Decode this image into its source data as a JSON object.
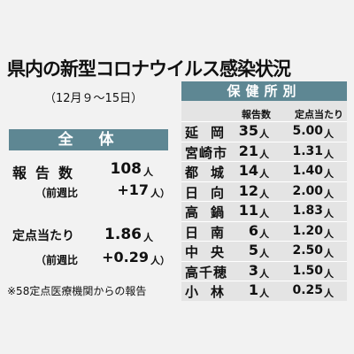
{
  "title": "県内の新型コロナウイルス感染状況",
  "period": "（12月９〜15日）",
  "overall": {
    "header": "全　体",
    "rows": [
      {
        "label": "報告数",
        "value": "108",
        "unit": "人"
      },
      {
        "label": "（前週比",
        "value": "+17",
        "unit": "人）"
      },
      {
        "label": "定点当たり",
        "value": "1.86",
        "unit": "人"
      },
      {
        "label": "（前週比",
        "value": "+0.29",
        "unit": "人）"
      }
    ]
  },
  "note": "※58定点医療機関からの報告",
  "by_office": {
    "header": "保健所別",
    "columns": [
      "報告数",
      "定点当たり"
    ],
    "rows": [
      {
        "name": "延岡",
        "count": "35",
        "count_unit": "人",
        "per": "5.00",
        "per_unit": "人"
      },
      {
        "name": "宮崎市",
        "count": "21",
        "count_unit": "人",
        "per": "1.31",
        "per_unit": "人"
      },
      {
        "name": "都城",
        "count": "14",
        "count_unit": "人",
        "per": "1.40",
        "per_unit": "人"
      },
      {
        "name": "日向",
        "count": "12",
        "count_unit": "人",
        "per": "2.00",
        "per_unit": "人"
      },
      {
        "name": "高鍋",
        "count": "11",
        "count_unit": "人",
        "per": "1.83",
        "per_unit": "人"
      },
      {
        "name": "日南",
        "count": "6",
        "count_unit": "人",
        "per": "1.20",
        "per_unit": "人"
      },
      {
        "name": "中央",
        "count": "5",
        "count_unit": "人",
        "per": "2.50",
        "per_unit": "人"
      },
      {
        "name": "高千穂",
        "count": "3",
        "count_unit": "人",
        "per": "1.50",
        "per_unit": "人"
      },
      {
        "name": "小林",
        "count": "1",
        "count_unit": "人",
        "per": "0.25",
        "per_unit": "人"
      }
    ]
  }
}
